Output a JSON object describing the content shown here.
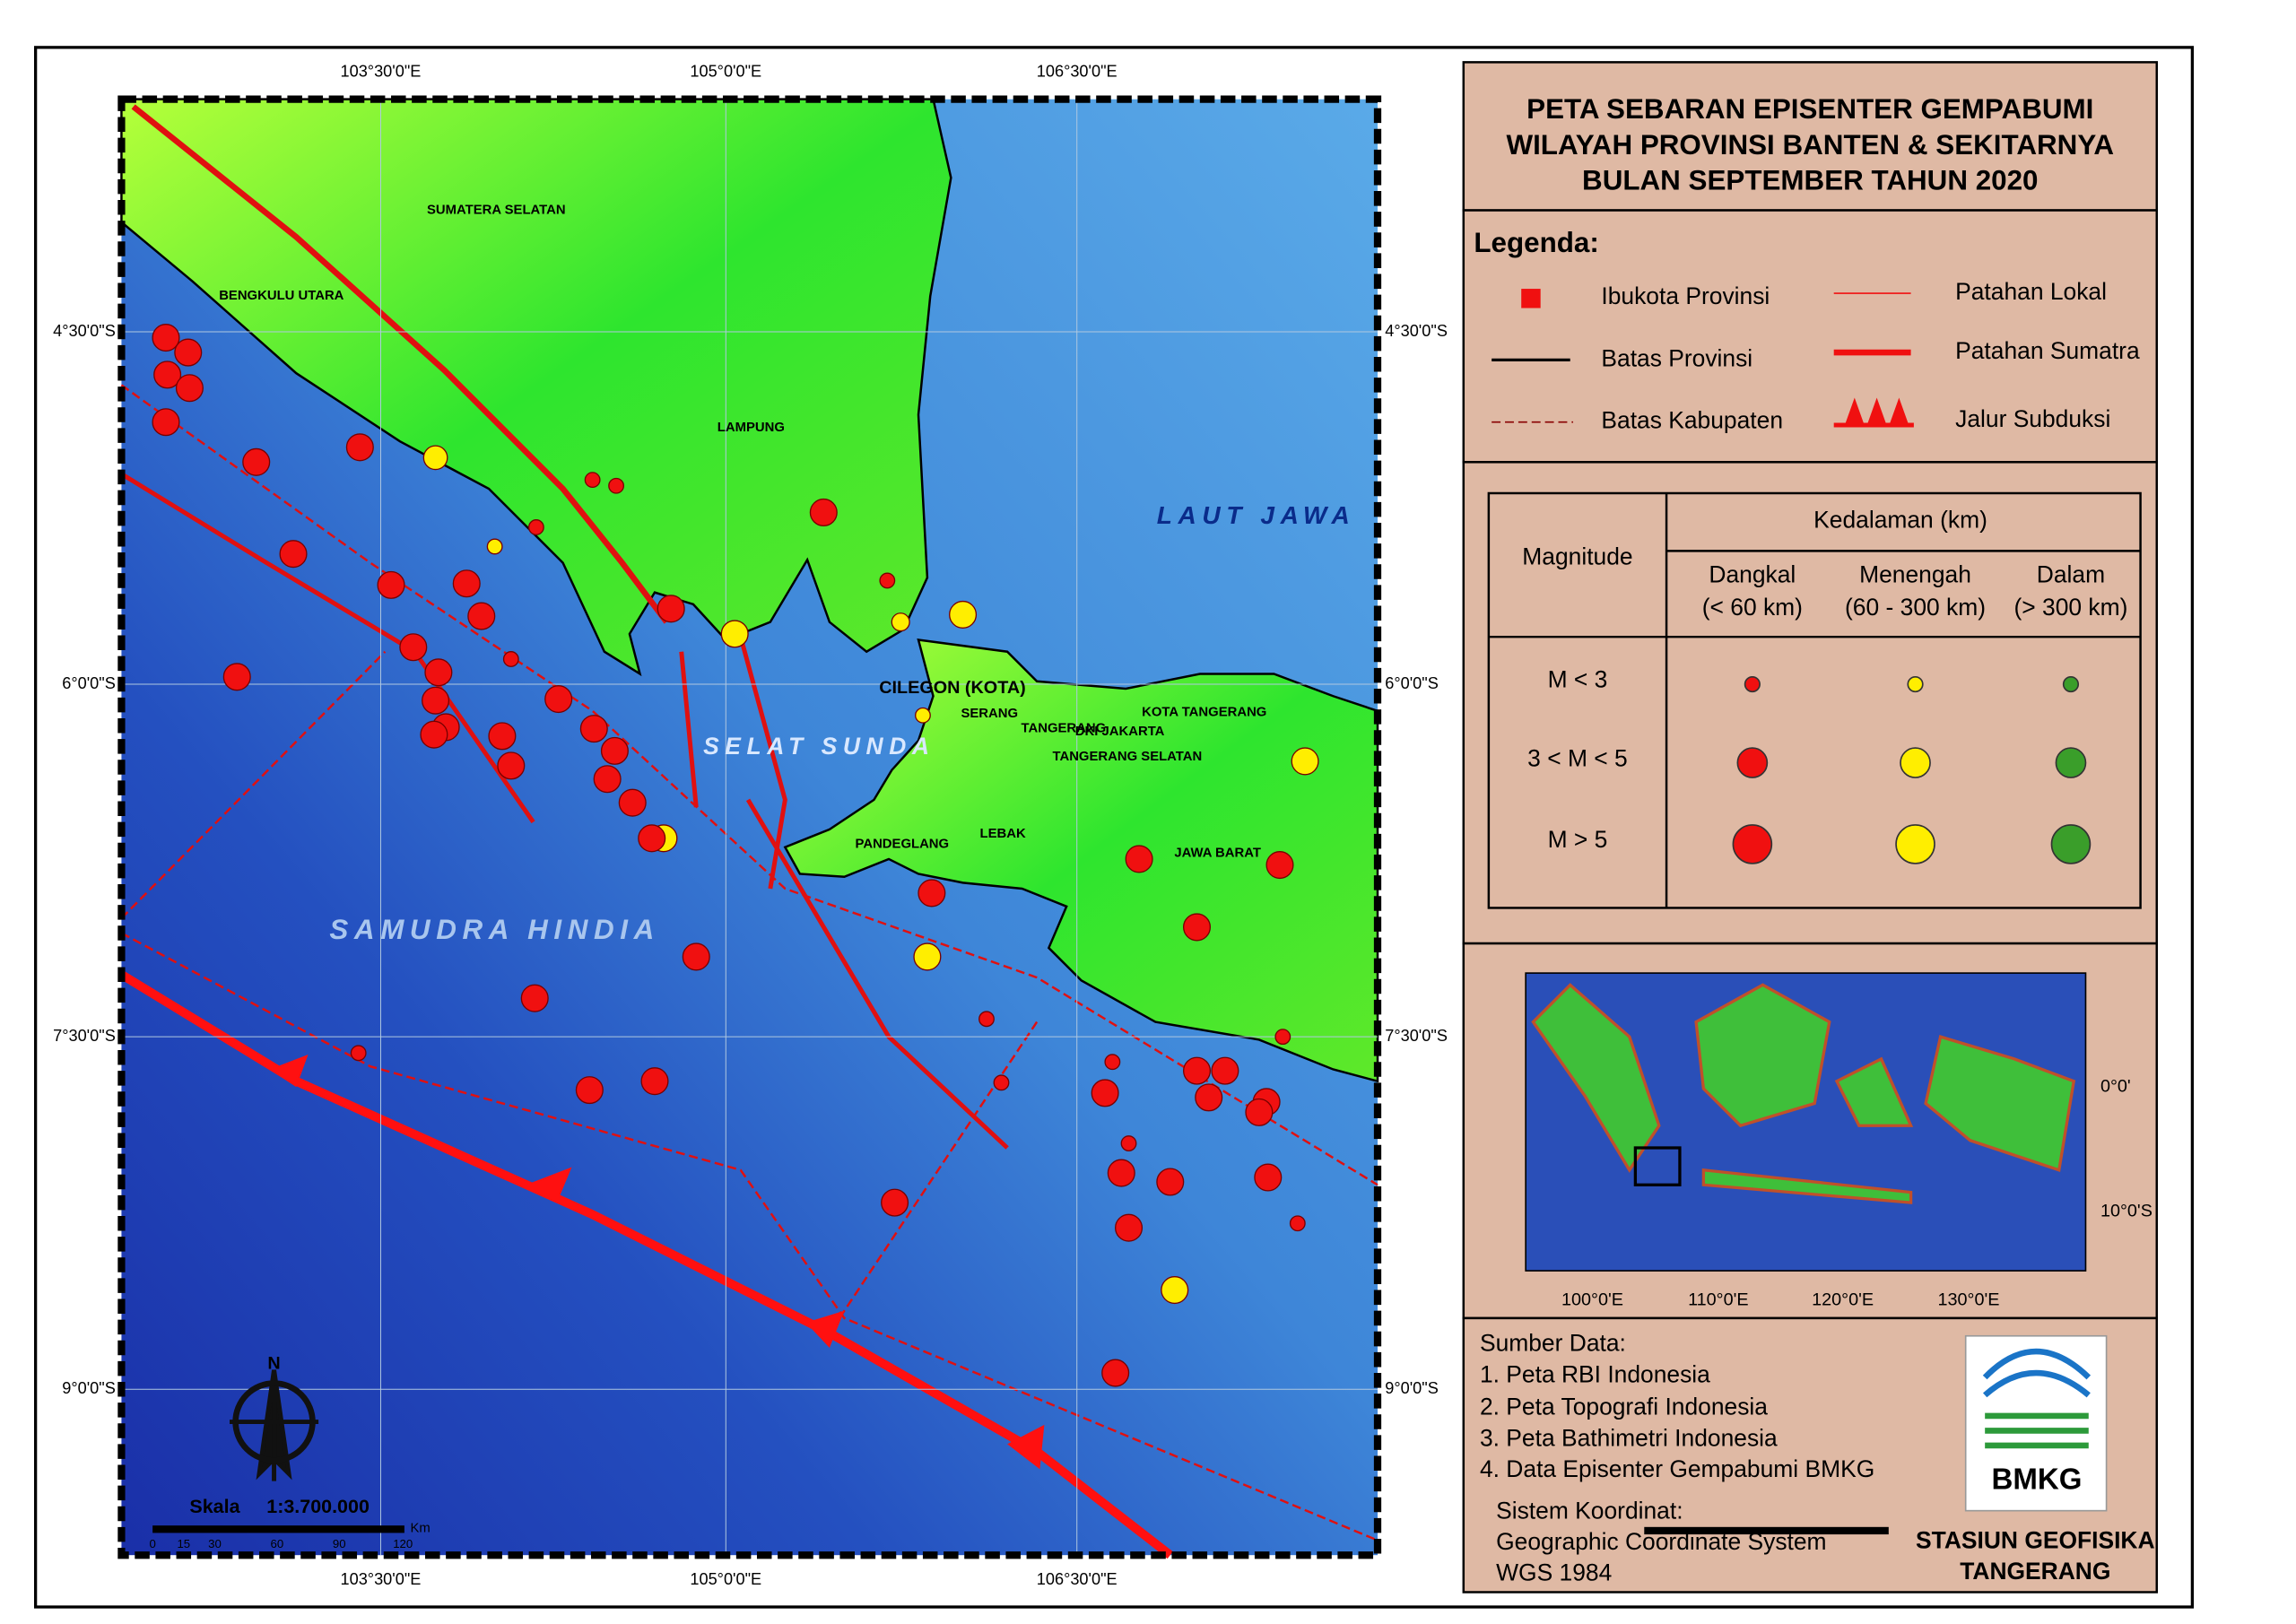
{
  "title": {
    "lines": [
      "PETA SEBARAN EPISENTER GEMPABUMI",
      "WILAYAH PROVINSI BANTEN & SEKITARNYA",
      "BULAN SEPTEMBER TAHUN 2020"
    ]
  },
  "legend": {
    "heading": "Legenda:",
    "items": [
      "Ibukota Provinsi",
      "Patahan Lokal",
      "Batas Provinsi",
      "Patahan Sumatra",
      "Batas Kabupaten",
      "Jalur Subduksi"
    ]
  },
  "depth_table": {
    "magnitude": "Magnitude",
    "depth": "Kedalaman (km)",
    "columns": [
      [
        "Dangkal",
        "(< 60 km)"
      ],
      [
        "Menengah",
        "(60 - 300 km)"
      ],
      [
        "Dalam",
        "(> 300 km)"
      ]
    ],
    "rows": [
      "M < 3",
      "3 < M < 5",
      "M > 5"
    ]
  },
  "inset": {
    "lat_labels": [
      "0°0'",
      "10°0'S"
    ],
    "lon_labels": [
      "100°0'E",
      "110°0'E",
      "120°0'E",
      "130°0'E"
    ]
  },
  "sources": {
    "heading": "Sumber Data:",
    "items": [
      "1. Peta RBI Indonesia",
      "2. Peta Topografi Indonesia",
      "3. Peta Bathimetri Indonesia",
      "4. Data Episenter Gempabumi BMKG"
    ],
    "crs_heading": "Sistem Koordinat:",
    "crs": [
      "Geographic Coordinate System",
      "WGS 1984"
    ]
  },
  "agency": {
    "logo": "BMKG",
    "lines": [
      "STASIUN GEOFISIKA",
      "TANGERANG"
    ]
  },
  "map": {
    "lon_labels": [
      "103°30'0\"E",
      "105°0'0\"E",
      "106°30'0\"E"
    ],
    "lat_labels": [
      "4°30'0\"S",
      "6°0'0\"S",
      "7°30'0\"S",
      "9°0'0\"S"
    ],
    "places": [
      "SUMATERA SELATAN",
      "BENGKULU UTARA",
      "LAMPUNG",
      "LAUT JAWA",
      "SELAT SUNDA",
      "SAMUDRA HINDIA",
      "CILEGON (KOTA)",
      "SERANG",
      "TANGERANG",
      "DKI JAKARTA",
      "KOTA TANGERANG",
      "TANGERANG SELATAN",
      "PANDEGLANG",
      "LEBAK",
      "JAWA BARAT"
    ],
    "north": "N",
    "scale_label": "Skala",
    "scale": "1:3.700.000",
    "scale_unit": "Km",
    "scale_ticks": [
      "0",
      "15",
      "30",
      "60",
      "90",
      "120"
    ]
  }
}
